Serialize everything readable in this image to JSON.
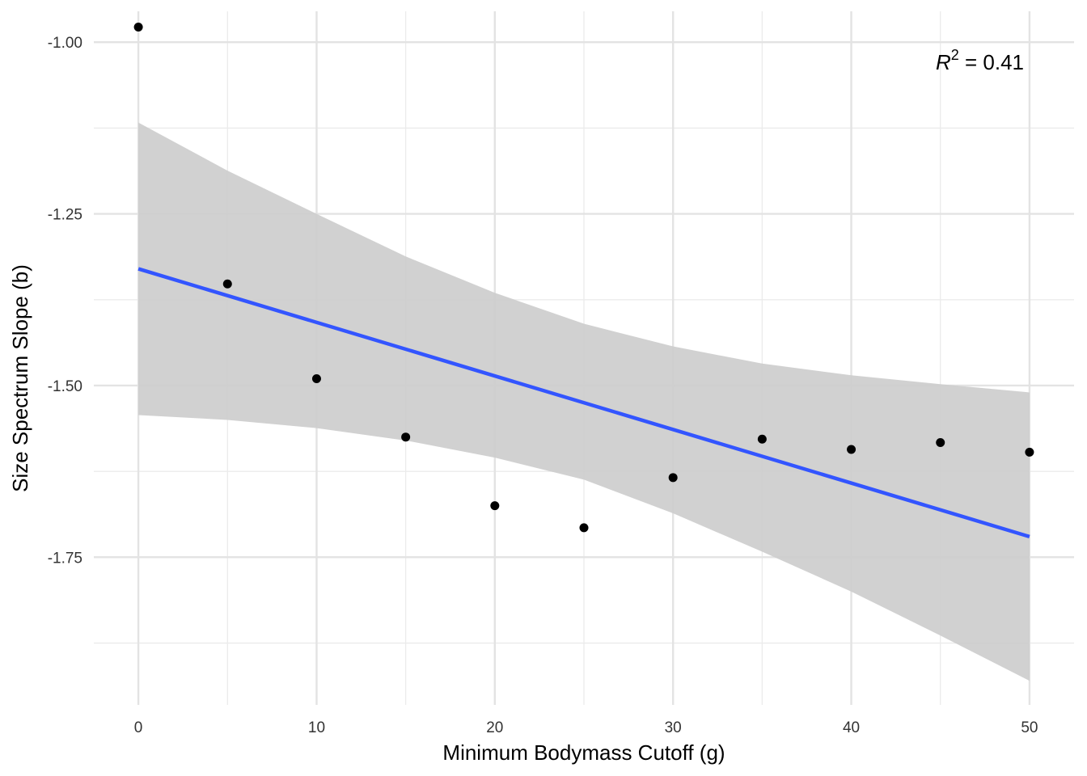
{
  "chart_data": {
    "type": "scatter",
    "xlabel": "Minimum Bodymass Cutoff (g)",
    "ylabel": "Size Spectrum Slope (b)",
    "xlim": [
      -2.5,
      52.5
    ],
    "ylim": [
      -1.965,
      -0.955
    ],
    "x_ticks": [
      0,
      10,
      20,
      30,
      40,
      50
    ],
    "x_tick_labels": [
      "0",
      "10",
      "20",
      "30",
      "40",
      "50"
    ],
    "x_minor_ticks": [
      5,
      15,
      25,
      35,
      45
    ],
    "y_ticks": [
      -1.0,
      -1.25,
      -1.5,
      -1.75
    ],
    "y_tick_labels": [
      "-1.00",
      "-1.25",
      "-1.50",
      "-1.75"
    ],
    "y_minor_ticks": [
      -1.125,
      -1.375,
      -1.625,
      -1.875
    ],
    "grid": true,
    "points": {
      "x": [
        0,
        5,
        10,
        15,
        20,
        25,
        30,
        35,
        40,
        45,
        50
      ],
      "y": [
        -0.978,
        -1.352,
        -1.49,
        -1.575,
        -1.675,
        -1.707,
        -1.634,
        -1.578,
        -1.593,
        -1.583,
        -1.597
      ],
      "color": "#000000"
    },
    "fit_line": {
      "x": [
        0,
        50
      ],
      "y": [
        -1.33,
        -1.72
      ],
      "color": "#3355FF"
    },
    "confidence_band": {
      "x": [
        0,
        5,
        10,
        15,
        20,
        25,
        30,
        35,
        40,
        45,
        50
      ],
      "upper": [
        -1.117,
        -1.187,
        -1.25,
        -1.312,
        -1.365,
        -1.41,
        -1.443,
        -1.468,
        -1.485,
        -1.498,
        -1.51
      ],
      "lower": [
        -1.543,
        -1.55,
        -1.562,
        -1.58,
        -1.605,
        -1.637,
        -1.686,
        -1.742,
        -1.8,
        -1.864,
        -1.93
      ],
      "color": "#CCCCCC"
    },
    "annotation": {
      "symbol": "R",
      "superscript": "2",
      "text": " = 0.41"
    }
  }
}
